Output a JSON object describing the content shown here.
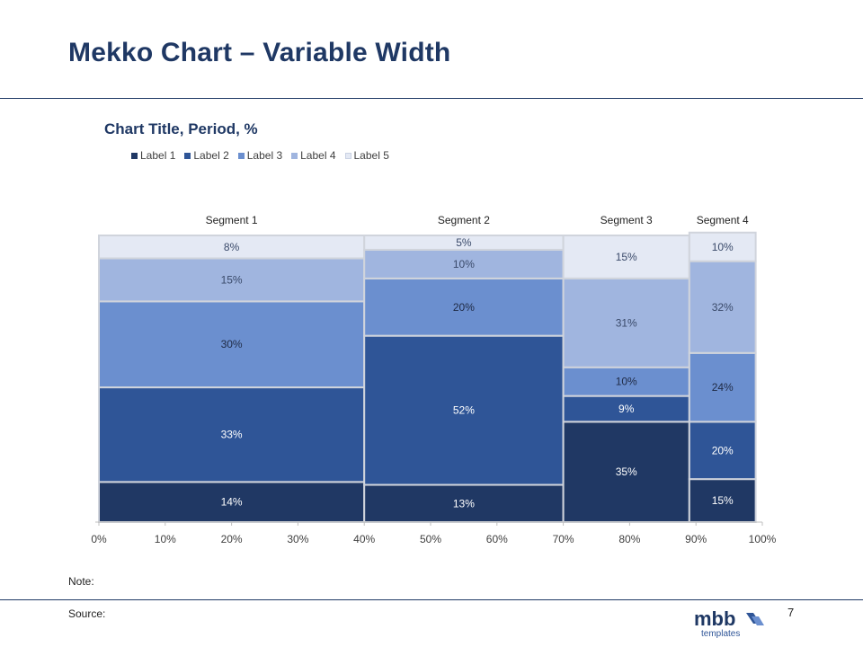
{
  "slide": {
    "title": "Mekko Chart – Variable Width",
    "note_label": "Note:",
    "source_label": "Source:",
    "page_number": "7",
    "logo": {
      "name": "mbb",
      "tagline": "templates"
    }
  },
  "colors": {
    "label1": "#203864",
    "label2": "#2f5597",
    "label3": "#6b8fcf",
    "label4": "#a0b5df",
    "label5": "#e4e9f4",
    "brand": "#1f3864"
  },
  "chart_data": {
    "type": "mekko",
    "title": "Chart Title, Period, %",
    "legend": [
      "Label 1",
      "Label 2",
      "Label 3",
      "Label 4",
      "Label 5"
    ],
    "x_ticks": [
      "0%",
      "10%",
      "20%",
      "30%",
      "40%",
      "50%",
      "60%",
      "70%",
      "80%",
      "90%",
      "100%"
    ],
    "segments": [
      {
        "name": "Segment 1",
        "x_start": 0,
        "x_end": 40,
        "values": [
          14,
          33,
          30,
          15,
          8
        ],
        "labels": [
          "14%",
          "33%",
          "30%",
          "15%",
          "8%"
        ]
      },
      {
        "name": "Segment 2",
        "x_start": 40,
        "x_end": 70,
        "values": [
          13,
          52,
          20,
          10,
          5
        ],
        "labels": [
          "13%",
          "52%",
          "20%",
          "10%",
          "5%"
        ]
      },
      {
        "name": "Segment 3",
        "x_start": 70,
        "x_end": 89,
        "values": [
          35,
          9,
          10,
          31,
          15
        ],
        "labels": [
          "35%",
          "9%",
          "10%",
          "31%",
          "15%"
        ]
      },
      {
        "name": "Segment 4",
        "x_start": 89,
        "x_end": 99,
        "values": [
          15,
          20,
          24,
          32,
          10
        ],
        "labels": [
          "15%",
          "20%",
          "24%",
          "32%",
          "10%"
        ]
      }
    ]
  }
}
